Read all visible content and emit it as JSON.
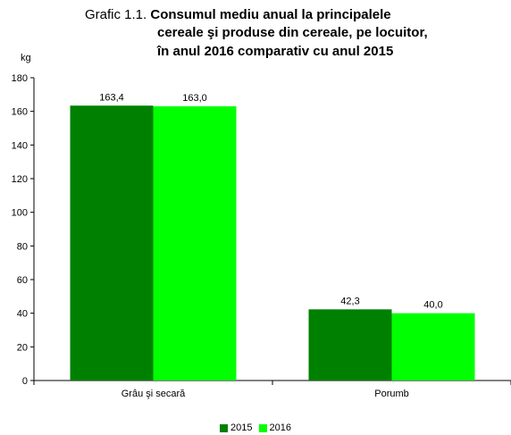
{
  "title": {
    "prefix": "Grafic 1.1.",
    "line1": "Consumul mediu anual la principalele",
    "line2": "cereale şi produse din cereale, pe locuitor,",
    "line3": "în anul 2016 comparativ cu anul 2015"
  },
  "chart_data": {
    "type": "bar",
    "categories": [
      "Grâu şi secară",
      "Porumb"
    ],
    "series": [
      {
        "name": "2015",
        "values": [
          163.4,
          42.3
        ],
        "labels": [
          "163,4",
          "42,3"
        ],
        "color": "#008000"
      },
      {
        "name": "2016",
        "values": [
          163.0,
          40.0
        ],
        "labels": [
          "163,0",
          "40,0"
        ],
        "color": "#00ff00"
      }
    ],
    "ylabel": "kg",
    "ylim": [
      0,
      180
    ],
    "yticks": [
      0,
      20,
      40,
      60,
      80,
      100,
      120,
      140,
      160,
      180
    ],
    "grid": false,
    "legend_position": "bottom"
  }
}
